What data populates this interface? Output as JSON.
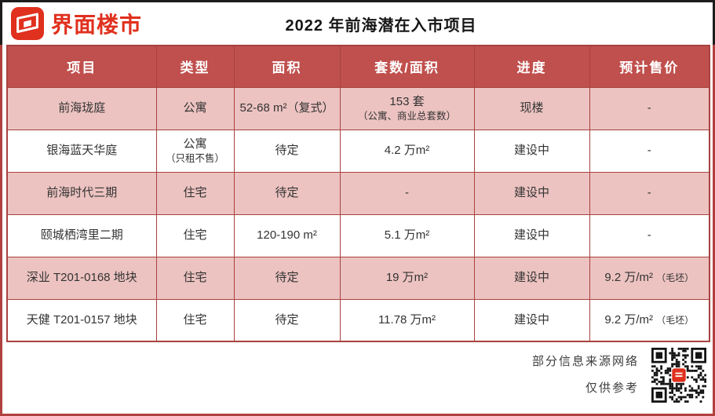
{
  "logo": {
    "brand": "界面楼市"
  },
  "header": {
    "title": "2022 年前海潜在入市项目"
  },
  "table": {
    "columns": [
      "项目",
      "类型",
      "面积",
      "套数/面积",
      "进度",
      "预计售价"
    ],
    "rows": [
      [
        {
          "text": "前海珑庭"
        },
        {
          "text": "公寓"
        },
        {
          "text": "52-68 m²（复式）"
        },
        {
          "text": "153 套",
          "sub": "（公寓、商业总套数）"
        },
        {
          "text": "现楼"
        },
        {
          "text": "-"
        }
      ],
      [
        {
          "text": "银海蓝天华庭"
        },
        {
          "text": "公寓",
          "sub": "（只租不售）"
        },
        {
          "text": "待定"
        },
        {
          "text": "4.2 万m²"
        },
        {
          "text": "建设中"
        },
        {
          "text": "-"
        }
      ],
      [
        {
          "text": "前海时代三期"
        },
        {
          "text": "住宅"
        },
        {
          "text": "待定"
        },
        {
          "text": "-"
        },
        {
          "text": "建设中"
        },
        {
          "text": "-"
        }
      ],
      [
        {
          "text": "颐城栖湾里二期"
        },
        {
          "text": "住宅"
        },
        {
          "text": "120-190 m²"
        },
        {
          "text": "5.1 万m²"
        },
        {
          "text": "建设中"
        },
        {
          "text": "-"
        }
      ],
      [
        {
          "text": "深业 T201-0168 地块"
        },
        {
          "text": "住宅"
        },
        {
          "text": "待定"
        },
        {
          "text": "19 万m²"
        },
        {
          "text": "建设中"
        },
        {
          "text": "9.2 万/m²",
          "note": "（毛坯）"
        }
      ],
      [
        {
          "text": "天健 T201-0157 地块"
        },
        {
          "text": "住宅"
        },
        {
          "text": "待定"
        },
        {
          "text": "11.78 万m²"
        },
        {
          "text": "建设中"
        },
        {
          "text": "9.2 万/m²",
          "note": "（毛坯）"
        }
      ]
    ]
  },
  "footer": {
    "source_note": "部分信息来源网络",
    "reference_note": "仅供参考"
  },
  "colors": {
    "brand_red": "#E0301E",
    "table_header_bg": "#C0504D",
    "row_pink": "#ECC3C1",
    "cell_border_red": "#A8423F",
    "top_edge_black": "#1C1C1C",
    "header_text": "#FFFFFF",
    "body_text": "#333333"
  },
  "chart_data": {
    "type": "table",
    "title": "2022 年前海潜在入市项目",
    "columns": [
      "项目",
      "类型",
      "面积",
      "套数/面积",
      "进度",
      "预计售价"
    ],
    "rows": [
      [
        "前海珑庭",
        "公寓",
        "52-68 ㎡（复式）",
        "153 套（公寓、商业总套数）",
        "现楼",
        "-"
      ],
      [
        "银海蓝天华庭",
        "公寓（只租不售）",
        "待定",
        "4.2 万㎡",
        "建设中",
        "-"
      ],
      [
        "前海时代三期",
        "住宅",
        "待定",
        "-",
        "建设中",
        "-"
      ],
      [
        "颐城栖湾里二期",
        "住宅",
        "120-190 ㎡",
        "5.1 万㎡",
        "建设中",
        "-"
      ],
      [
        "深业 T201-0168 地块",
        "住宅",
        "待定",
        "19 万㎡",
        "建设中",
        "9.2 万/㎡（毛坯）"
      ],
      [
        "天健 T201-0157 地块",
        "住宅",
        "待定",
        "11.78 万㎡",
        "建设中",
        "9.2 万/㎡（毛坯）"
      ]
    ],
    "layout": {
      "header_style": "dark-red banner, white bold text",
      "zebra": "pink/white alternating rows",
      "grid": true
    }
  }
}
